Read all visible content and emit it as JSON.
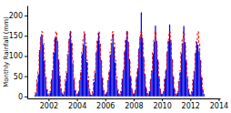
{
  "chart_data": {
    "type": "bar",
    "ylabel": "Monthly Rainfall (mm)",
    "x": [
      2001.0416666666667,
      2001.125,
      2001.2083333333333,
      2001.2916666666667,
      2001.375,
      2001.4583333333333,
      2001.5416666666667,
      2001.625,
      2001.7083333333333,
      2001.7916666666667,
      2001.875,
      2001.9583333333333,
      2002.0416666666667,
      2002.125,
      2002.2083333333333,
      2002.2916666666667,
      2002.375,
      2002.4583333333333,
      2002.5416666666667,
      2002.625,
      2002.7083333333333,
      2002.7916666666667,
      2002.875,
      2002.9583333333333,
      2003.0416666666667,
      2003.125,
      2003.2083333333333,
      2003.2916666666667,
      2003.375,
      2003.4583333333333,
      2003.5416666666667,
      2003.625,
      2003.7083333333333,
      2003.7916666666667,
      2003.875,
      2003.9583333333333,
      2004.0416666666667,
      2004.125,
      2004.2083333333333,
      2004.2916666666667,
      2004.375,
      2004.4583333333333,
      2004.5416666666667,
      2004.625,
      2004.7083333333333,
      2004.7916666666667,
      2004.875,
      2004.9583333333333,
      2005.0416666666667,
      2005.125,
      2005.2083333333333,
      2005.2916666666667,
      2005.375,
      2005.4583333333333,
      2005.5416666666667,
      2005.625,
      2005.7083333333333,
      2005.7916666666667,
      2005.875,
      2005.9583333333333,
      2006.0416666666667,
      2006.125,
      2006.2083333333333,
      2006.2916666666667,
      2006.375,
      2006.4583333333333,
      2006.5416666666667,
      2006.625,
      2006.7083333333333,
      2006.7916666666667,
      2006.875,
      2006.9583333333333,
      2007.0416666666667,
      2007.125,
      2007.2083333333333,
      2007.2916666666667,
      2007.375,
      2007.4583333333333,
      2007.5416666666667,
      2007.625,
      2007.7083333333333,
      2007.7916666666667,
      2007.875,
      2007.9583333333333,
      2008.0416666666667,
      2008.125,
      2008.2083333333333,
      2008.2916666666667,
      2008.375,
      2008.4583333333333,
      2008.5416666666667,
      2008.625,
      2008.7083333333333,
      2008.7916666666667,
      2008.875,
      2008.9583333333333,
      2009.0416666666667,
      2009.125,
      2009.2083333333333,
      2009.2916666666667,
      2009.375,
      2009.4583333333333,
      2009.5416666666667,
      2009.625,
      2009.7083333333333,
      2009.7916666666667,
      2009.875,
      2009.9583333333333,
      2010.0416666666667,
      2010.125,
      2010.2083333333333,
      2010.2916666666667,
      2010.375,
      2010.4583333333333,
      2010.5416666666667,
      2010.625,
      2010.7083333333333,
      2010.7916666666667,
      2010.875,
      2010.9583333333333,
      2011.0416666666667,
      2011.125,
      2011.2083333333333,
      2011.2916666666667,
      2011.375,
      2011.4583333333333,
      2011.5416666666667,
      2011.625,
      2011.7083333333333,
      2011.7916666666667,
      2011.875,
      2011.9583333333333,
      2012.0416666666667,
      2012.125,
      2012.2083333333333,
      2012.2916666666667,
      2012.375,
      2012.4583333333333,
      2012.5416666666667,
      2012.625,
      2012.7083333333333,
      2012.7916666666667,
      2012.875,
      2012.9583333333333
    ],
    "series": [
      {
        "type": "bar",
        "color": "#0000dd",
        "values": [
          3,
          8,
          35,
          55,
          115,
          148,
          152,
          128,
          88,
          48,
          18,
          5,
          4,
          10,
          42,
          65,
          108,
          145,
          148,
          138,
          92,
          52,
          20,
          8,
          5,
          12,
          38,
          58,
          102,
          142,
          162,
          132,
          82,
          42,
          15,
          5,
          6,
          11,
          40,
          60,
          105,
          128,
          155,
          125,
          85,
          40,
          14,
          4,
          4,
          9,
          36,
          58,
          110,
          138,
          158,
          130,
          90,
          46,
          16,
          6,
          5,
          11,
          40,
          62,
          104,
          132,
          155,
          122,
          84,
          42,
          15,
          5,
          6,
          14,
          44,
          66,
          112,
          140,
          162,
          135,
          92,
          50,
          19,
          7,
          7,
          16,
          48,
          70,
          118,
          148,
          208,
          145,
          98,
          56,
          23,
          9,
          5,
          12,
          42,
          64,
          106,
          135,
          175,
          138,
          90,
          48,
          18,
          6,
          6,
          13,
          44,
          66,
          110,
          138,
          178,
          140,
          92,
          50,
          20,
          7,
          4,
          10,
          38,
          60,
          106,
          132,
          174,
          135,
          88,
          46,
          17,
          5,
          5,
          12,
          40,
          62,
          108,
          135,
          128,
          112,
          90,
          48,
          18,
          6
        ]
      },
      {
        "type": "step",
        "color": "#ff0000",
        "line_style": "dashed",
        "values": [
          6,
          12,
          42,
          63,
          110,
          140,
          160,
          132,
          90,
          49,
          18,
          6,
          6,
          12,
          42,
          63,
          110,
          140,
          160,
          132,
          90,
          49,
          18,
          6,
          6,
          12,
          42,
          63,
          110,
          140,
          160,
          132,
          90,
          49,
          18,
          6,
          6,
          12,
          42,
          63,
          110,
          140,
          160,
          132,
          90,
          49,
          18,
          6,
          6,
          12,
          42,
          63,
          110,
          140,
          160,
          132,
          90,
          49,
          18,
          6,
          6,
          12,
          42,
          63,
          110,
          140,
          160,
          132,
          90,
          49,
          18,
          6,
          6,
          12,
          42,
          63,
          110,
          140,
          160,
          132,
          90,
          49,
          18,
          6,
          6,
          12,
          42,
          63,
          110,
          140,
          160,
          132,
          90,
          49,
          18,
          6,
          6,
          12,
          42,
          63,
          110,
          140,
          160,
          132,
          90,
          49,
          18,
          6,
          6,
          12,
          42,
          63,
          110,
          140,
          160,
          132,
          90,
          49,
          18,
          6,
          6,
          12,
          42,
          63,
          110,
          140,
          160,
          132,
          90,
          49,
          18,
          6,
          6,
          12,
          42,
          63,
          110,
          140,
          160,
          132,
          90,
          49,
          18,
          6
        ]
      }
    ],
    "xlim": [
      2000.5,
      2014.1
    ],
    "ylim": [
      -5,
      225
    ],
    "xticks": [
      2002,
      2004,
      2006,
      2008,
      2010,
      2012,
      2014
    ],
    "yticks": [
      0,
      50,
      100,
      150,
      200
    ],
    "grid": false
  }
}
